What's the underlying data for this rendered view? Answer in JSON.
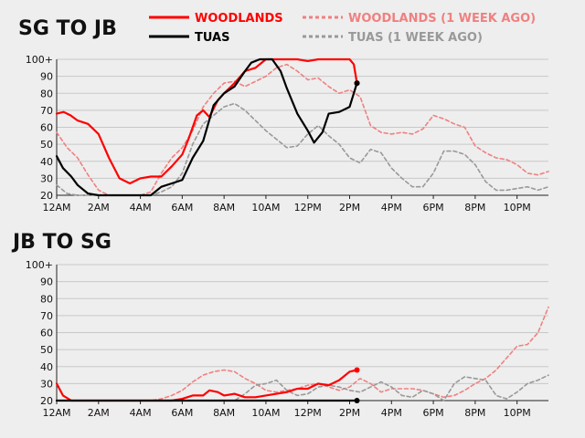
{
  "colors": {
    "background": "#eeeeee",
    "woodlands": "#ff0000",
    "tuas": "#000000",
    "woodlands_week_ago": "#f08080",
    "tuas_week_ago": "#999999",
    "grid": "#c8c8c8"
  },
  "legend": [
    {
      "key": "woodlands",
      "label": "WOODLANDS",
      "dashed": false
    },
    {
      "key": "woodlands_week_ago",
      "label": "WOODLANDS (1 WEEK AGO)",
      "dashed": true
    },
    {
      "key": "tuas",
      "label": "TUAS",
      "dashed": false
    },
    {
      "key": "tuas_week_ago",
      "label": "TUAS (1 WEEK AGO)",
      "dashed": true
    }
  ],
  "chart_data": [
    {
      "type": "line",
      "title": "SG TO JB",
      "x_unit": "hours",
      "xlim": [
        0,
        23.5
      ],
      "ylim": [
        20,
        100
      ],
      "y_ticks": [
        "20",
        "30",
        "40",
        "50",
        "60",
        "70",
        "80",
        "90",
        "100+"
      ],
      "x_ticks": [
        "12AM",
        "2AM",
        "4AM",
        "6AM",
        "8AM",
        "10AM",
        "12PM",
        "2PM",
        "4PM",
        "6PM",
        "8PM",
        "10PM"
      ],
      "grid": true,
      "series": [
        {
          "name": "WOODLANDS (1 WEEK AGO)",
          "key": "woodlands_week_ago",
          "x": [
            0,
            0.5,
            1,
            1.5,
            2,
            2.5,
            3,
            3.5,
            4,
            4.5,
            5,
            5.5,
            6,
            6.5,
            7,
            7.5,
            8,
            8.5,
            9,
            9.5,
            10,
            10.5,
            11,
            11.5,
            12,
            12.5,
            13,
            13.5,
            14,
            14.5,
            15,
            15.5,
            16,
            16.5,
            17,
            17.5,
            18,
            18.5,
            19,
            19.5,
            20,
            20.5,
            21,
            21.5,
            22,
            22.5,
            23,
            23.5
          ],
          "y": [
            57,
            48,
            42,
            32,
            23,
            20,
            20,
            20,
            20,
            22,
            33,
            42,
            48,
            58,
            72,
            80,
            86,
            87,
            84,
            87,
            90,
            95,
            97,
            93,
            88,
            89,
            84,
            80,
            82,
            78,
            61,
            57,
            56,
            57,
            56,
            59,
            67,
            65,
            62,
            60,
            49,
            45,
            42,
            41,
            38,
            33,
            32,
            34
          ]
        },
        {
          "name": "TUAS (1 WEEK AGO)",
          "key": "tuas_week_ago",
          "x": [
            0,
            0.5,
            1,
            1.5,
            2,
            2.5,
            3,
            3.5,
            4,
            4.5,
            5,
            5.5,
            6,
            6.5,
            7,
            7.5,
            8,
            8.5,
            9,
            9.5,
            10,
            10.5,
            11,
            11.5,
            12,
            12.5,
            13,
            13.5,
            14,
            14.5,
            15,
            15.5,
            16,
            16.5,
            17,
            17.5,
            18,
            18.5,
            19,
            19.5,
            20,
            20.5,
            21,
            21.5,
            22,
            22.5,
            23,
            23.5
          ],
          "y": [
            26,
            21,
            20,
            20,
            20,
            20,
            20,
            20,
            20,
            20,
            22,
            25,
            33,
            50,
            62,
            67,
            72,
            74,
            70,
            64,
            58,
            53,
            48,
            49,
            56,
            61,
            55,
            50,
            42,
            39,
            47,
            45,
            36,
            30,
            25,
            25,
            33,
            46,
            46,
            44,
            38,
            28,
            23,
            23,
            24,
            25,
            23,
            25
          ]
        },
        {
          "name": "WOODLANDS",
          "key": "woodlands",
          "x": [
            0,
            0.33,
            0.67,
            1,
            1.5,
            2,
            2.5,
            3,
            3.5,
            4,
            4.5,
            5,
            5.5,
            6,
            6.3,
            6.7,
            7,
            7.3,
            7.7,
            8,
            8.5,
            9,
            9.5,
            10,
            10.5,
            11,
            11.5,
            12,
            12.5,
            13,
            13.5,
            14,
            14.2,
            14.35
          ],
          "y": [
            68,
            69,
            67,
            64,
            62,
            56,
            42,
            30,
            27,
            30,
            31,
            31,
            37,
            44,
            53,
            67,
            70,
            66,
            76,
            80,
            86,
            93,
            95,
            100,
            100,
            100,
            100,
            99,
            100,
            100,
            100,
            100,
            97,
            86
          ]
        },
        {
          "name": "TUAS",
          "key": "tuas",
          "x": [
            0,
            0.3,
            0.7,
            1,
            1.5,
            2,
            2.5,
            3,
            3.5,
            4,
            4.5,
            5,
            5.5,
            6,
            6.5,
            7,
            7.5,
            8,
            8.5,
            9,
            9.3,
            9.7,
            10,
            10.3,
            10.7,
            11,
            11.5,
            12,
            12.3,
            12.7,
            13,
            13.5,
            14,
            14.35
          ],
          "y": [
            43,
            36,
            31,
            26,
            21,
            20,
            20,
            20,
            20,
            20,
            20,
            25,
            27,
            29,
            42,
            52,
            73,
            80,
            84,
            93,
            98,
            100,
            100,
            100,
            93,
            83,
            68,
            58,
            51,
            57,
            68,
            69,
            72,
            86
          ]
        }
      ]
    },
    {
      "type": "line",
      "title": "JB TO SG",
      "x_unit": "hours",
      "xlim": [
        0,
        23.5
      ],
      "ylim": [
        20,
        100
      ],
      "y_ticks": [
        "20",
        "30",
        "40",
        "50",
        "60",
        "70",
        "80",
        "90",
        "100+"
      ],
      "x_ticks": [
        "12AM",
        "2AM",
        "4AM",
        "6AM",
        "8AM",
        "10AM",
        "12PM",
        "2PM",
        "4PM",
        "6PM",
        "8PM",
        "10PM"
      ],
      "grid": true,
      "series": [
        {
          "name": "WOODLANDS (1 WEEK AGO)",
          "key": "woodlands_week_ago",
          "x": [
            0,
            0.5,
            1,
            1.5,
            2,
            2.5,
            3,
            3.5,
            4,
            4.5,
            5,
            5.5,
            6,
            6.5,
            7,
            7.5,
            8,
            8.5,
            9,
            9.5,
            10,
            10.5,
            11,
            11.5,
            12,
            12.5,
            13,
            13.5,
            14,
            14.5,
            15,
            15.5,
            16,
            16.5,
            17,
            17.5,
            18,
            18.5,
            19,
            19.5,
            20,
            20.5,
            21,
            21.5,
            22,
            22.5,
            23,
            23.5
          ],
          "y": [
            20,
            20,
            20,
            20,
            20,
            20,
            20,
            20,
            20,
            20,
            21,
            23,
            26,
            31,
            35,
            37,
            38,
            37,
            33,
            30,
            26,
            25,
            26,
            27,
            29,
            30,
            28,
            26,
            28,
            33,
            30,
            25,
            27,
            27,
            27,
            26,
            24,
            22,
            23,
            26,
            30,
            33,
            38,
            45,
            52,
            53,
            60,
            75
          ]
        },
        {
          "name": "TUAS (1 WEEK AGO)",
          "key": "tuas_week_ago",
          "x": [
            0,
            0.5,
            1,
            1.5,
            2,
            2.5,
            3,
            3.5,
            4,
            4.5,
            5,
            5.5,
            6,
            6.5,
            7,
            7.5,
            8,
            8.5,
            9,
            9.5,
            10,
            10.5,
            11,
            11.5,
            12,
            12.5,
            13,
            13.5,
            14,
            14.5,
            15,
            15.5,
            16,
            16.5,
            17,
            17.5,
            18,
            18.5,
            19,
            19.5,
            20,
            20.5,
            21,
            21.5,
            22,
            22.5,
            23,
            23.5
          ],
          "y": [
            20,
            20,
            20,
            20,
            20,
            20,
            20,
            20,
            20,
            20,
            20,
            20,
            20,
            20,
            20,
            20,
            20,
            20,
            24,
            29,
            30,
            32,
            26,
            23,
            24,
            28,
            29,
            28,
            26,
            25,
            28,
            31,
            28,
            23,
            22,
            26,
            24,
            20,
            30,
            34,
            33,
            32,
            23,
            21,
            25,
            30,
            32,
            35
          ]
        },
        {
          "name": "WOODLANDS",
          "key": "woodlands",
          "x": [
            0,
            0.3,
            0.7,
            1,
            1.5,
            2,
            2.5,
            3,
            3.5,
            4,
            4.5,
            5,
            5.5,
            6,
            6.5,
            7,
            7.3,
            7.7,
            8,
            8.5,
            9,
            9.5,
            10,
            10.5,
            11,
            11.5,
            12,
            12.5,
            13,
            13.5,
            14,
            14.35
          ],
          "y": [
            30,
            23,
            20,
            20,
            20,
            20,
            20,
            20,
            20,
            20,
            20,
            20,
            20,
            21,
            23,
            23,
            26,
            25,
            23,
            24,
            22,
            22,
            23,
            24,
            25,
            27,
            27,
            30,
            29,
            32,
            37,
            38
          ]
        },
        {
          "name": "TUAS",
          "key": "tuas",
          "x": [
            0,
            1,
            2,
            3,
            4,
            5,
            6,
            7,
            8,
            9,
            10,
            11,
            12,
            13,
            14,
            14.35
          ],
          "y": [
            20,
            20,
            20,
            20,
            20,
            20,
            20,
            20,
            20,
            20,
            20,
            20,
            20,
            20,
            20,
            20
          ]
        }
      ]
    }
  ]
}
